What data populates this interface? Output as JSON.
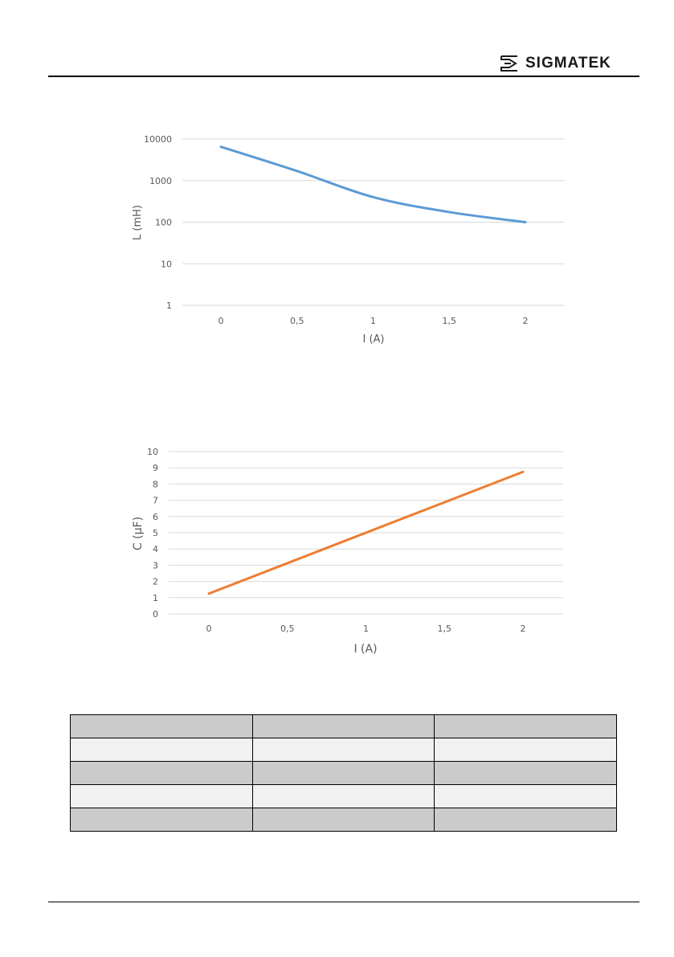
{
  "header": {
    "logo_text": "SIGMATEK"
  },
  "chart_data": [
    {
      "type": "line",
      "x": [
        0,
        0.5,
        1,
        1.5,
        2
      ],
      "series": [
        {
          "values": [
            6500,
            1700,
            400,
            175,
            100
          ],
          "color": "#5b9bd5"
        }
      ],
      "xlabel": "I (A)",
      "ylabel": "L (mH)",
      "x_tick_labels": [
        "0",
        "0,5",
        "1",
        "1,5",
        "2"
      ],
      "y_tick_labels": [
        "1",
        "10",
        "100",
        "1000",
        "10000"
      ],
      "yscale": "log",
      "ylim": [
        1,
        10000
      ],
      "grid": true
    },
    {
      "type": "line",
      "x": [
        0,
        2
      ],
      "series": [
        {
          "values": [
            1.25,
            8.75
          ],
          "color": "#ed7d31"
        }
      ],
      "xlabel": "I (A)",
      "ylabel": "C (µF)",
      "x_tick_labels": [
        "0",
        "0,5",
        "1",
        "1,5",
        "2"
      ],
      "y_tick_labels": [
        "0",
        "1",
        "2",
        "3",
        "4",
        "5",
        "6",
        "7",
        "8",
        "9",
        "10"
      ],
      "ylim": [
        0,
        10
      ],
      "grid": true
    }
  ],
  "table": {
    "rows": 5,
    "cols": 3
  }
}
